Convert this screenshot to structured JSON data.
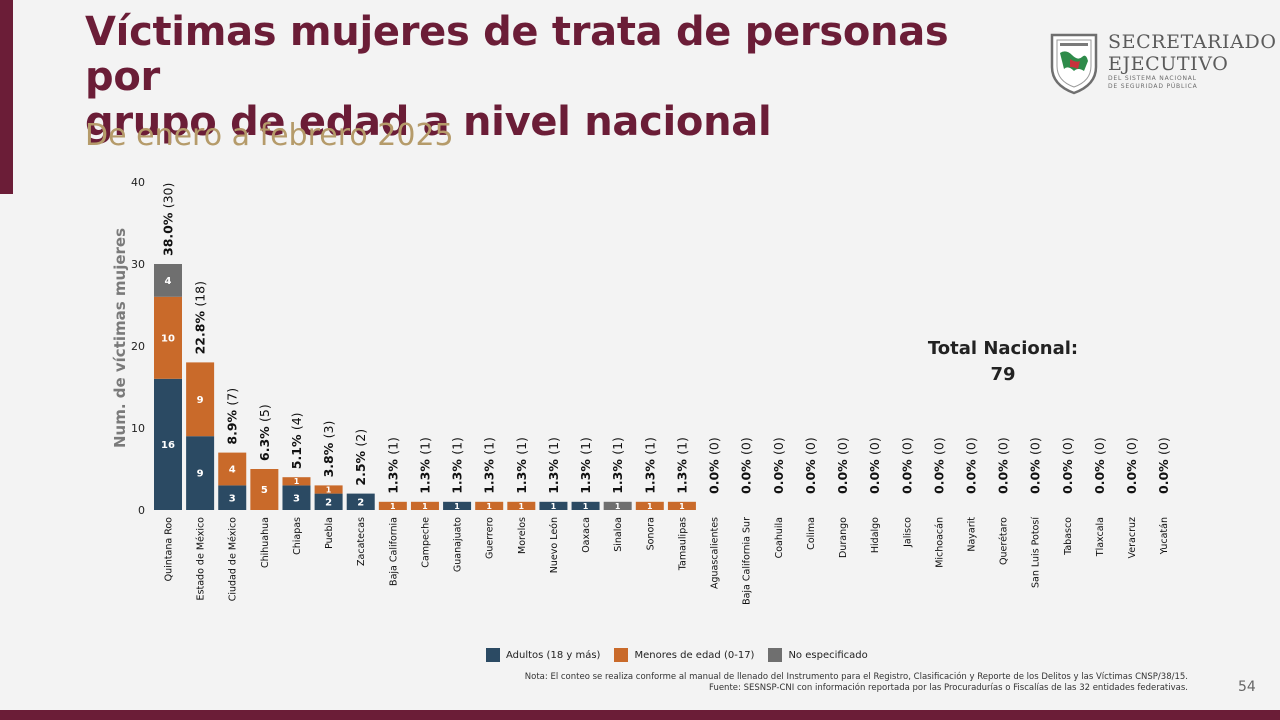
{
  "header": {
    "title_line1": "Víctimas mujeres de trata de personas por",
    "title_line2": "grupo de edad a nivel nacional",
    "subtitle": "De enero a febrero 2025"
  },
  "logo": {
    "line1": "SECRETARIADO",
    "line2": "EJECUTIVO",
    "line3": "DEL SISTEMA NACIONAL",
    "line4": "DE SEGURIDAD PÚBLICA",
    "icon": "national-emblem-shield-icon"
  },
  "colors": {
    "title": "#6b1d37",
    "subtitle": "#b59b6a",
    "accent_band": "#6b1d37",
    "adults": "#2b4a63",
    "minors": "#c96a2a",
    "unspecified": "#6f6f6f",
    "axis_text": "#222222"
  },
  "total": {
    "label": "Total Nacional:",
    "value": "79"
  },
  "legend": [
    {
      "label": "Adultos (18 y más)",
      "color": "#2b4a63"
    },
    {
      "label": "Menores de edad (0-17)",
      "color": "#c96a2a"
    },
    {
      "label": "No especificado",
      "color": "#6f6f6f"
    }
  ],
  "note": {
    "line1": "Nota: El conteo se realiza conforme al manual de llenado del Instrumento para el Registro, Clasificación y Reporte de los Delitos y las Víctimas CNSP/38/15.",
    "line2": "Fuente: SESNSP-CNI con información reportada por las Procuradurías o Fiscalías de las 32 entidades federativas."
  },
  "page_number": "54",
  "chart_data": {
    "type": "bar",
    "stacked": true,
    "ylabel": "Num. de víctimas mujeres",
    "ylim": [
      0,
      40
    ],
    "yticks": [
      0,
      10,
      20,
      30,
      40
    ],
    "grid": false,
    "legend_position": "bottom",
    "categories": [
      "Quintana Roo",
      "Estado de México",
      "Ciudad de México",
      "Chihuahua",
      "Chiapas",
      "Puebla",
      "Zacatecas",
      "Baja California",
      "Campeche",
      "Guanajuato",
      "Guerrero",
      "Morelos",
      "Nuevo León",
      "Oaxaca",
      "Sinaloa",
      "Sonora",
      "Tamaulipas",
      "Aguascalientes",
      "Baja California Sur",
      "Coahuila",
      "Colima",
      "Durango",
      "Hidalgo",
      "Jalisco",
      "Michoacán",
      "Nayarit",
      "Querétaro",
      "San Luis Potosí",
      "Tabasco",
      "Tlaxcala",
      "Veracruz",
      "Yucatán"
    ],
    "series": [
      {
        "name": "Adultos (18 y más)",
        "values": [
          16,
          9,
          3,
          0,
          3,
          2,
          2,
          0,
          0,
          1,
          0,
          0,
          1,
          1,
          0,
          0,
          0,
          0,
          0,
          0,
          0,
          0,
          0,
          0,
          0,
          0,
          0,
          0,
          0,
          0,
          0,
          0
        ]
      },
      {
        "name": "Menores de edad (0-17)",
        "values": [
          10,
          9,
          4,
          5,
          1,
          1,
          0,
          1,
          1,
          0,
          1,
          1,
          0,
          0,
          0,
          1,
          1,
          0,
          0,
          0,
          0,
          0,
          0,
          0,
          0,
          0,
          0,
          0,
          0,
          0,
          0,
          0
        ]
      },
      {
        "name": "No especificado",
        "values": [
          4,
          0,
          0,
          0,
          0,
          0,
          0,
          0,
          0,
          0,
          0,
          0,
          0,
          0,
          1,
          0,
          0,
          0,
          0,
          0,
          0,
          0,
          0,
          0,
          0,
          0,
          0,
          0,
          0,
          0,
          0,
          0
        ]
      }
    ],
    "totals": [
      30,
      18,
      7,
      5,
      4,
      3,
      2,
      1,
      1,
      1,
      1,
      1,
      1,
      1,
      1,
      1,
      1,
      0,
      0,
      0,
      0,
      0,
      0,
      0,
      0,
      0,
      0,
      0,
      0,
      0,
      0,
      0
    ],
    "percent_labels": [
      "38.0%",
      "22.8%",
      "8.9%",
      "6.3%",
      "5.1%",
      "3.8%",
      "2.5%",
      "1.3%",
      "1.3%",
      "1.3%",
      "1.3%",
      "1.3%",
      "1.3%",
      "1.3%",
      "1.3%",
      "1.3%",
      "1.3%",
      "0.0%",
      "0.0%",
      "0.0%",
      "0.0%",
      "0.0%",
      "0.0%",
      "0.0%",
      "0.0%",
      "0.0%",
      "0.0%",
      "0.0%",
      "0.0%",
      "0.0%",
      "0.0%",
      "0.0%"
    ],
    "count_labels": [
      "(30)",
      "(18)",
      "(7)",
      "(5)",
      "(4)",
      "(3)",
      "(2)",
      "(1)",
      "(1)",
      "(1)",
      "(1)",
      "(1)",
      "(1)",
      "(1)",
      "(1)",
      "(1)",
      "(1)",
      "(0)",
      "(0)",
      "(0)",
      "(0)",
      "(0)",
      "(0)",
      "(0)",
      "(0)",
      "(0)",
      "(0)",
      "(0)",
      "(0)",
      "(0)",
      "(0)",
      "(0)"
    ]
  }
}
